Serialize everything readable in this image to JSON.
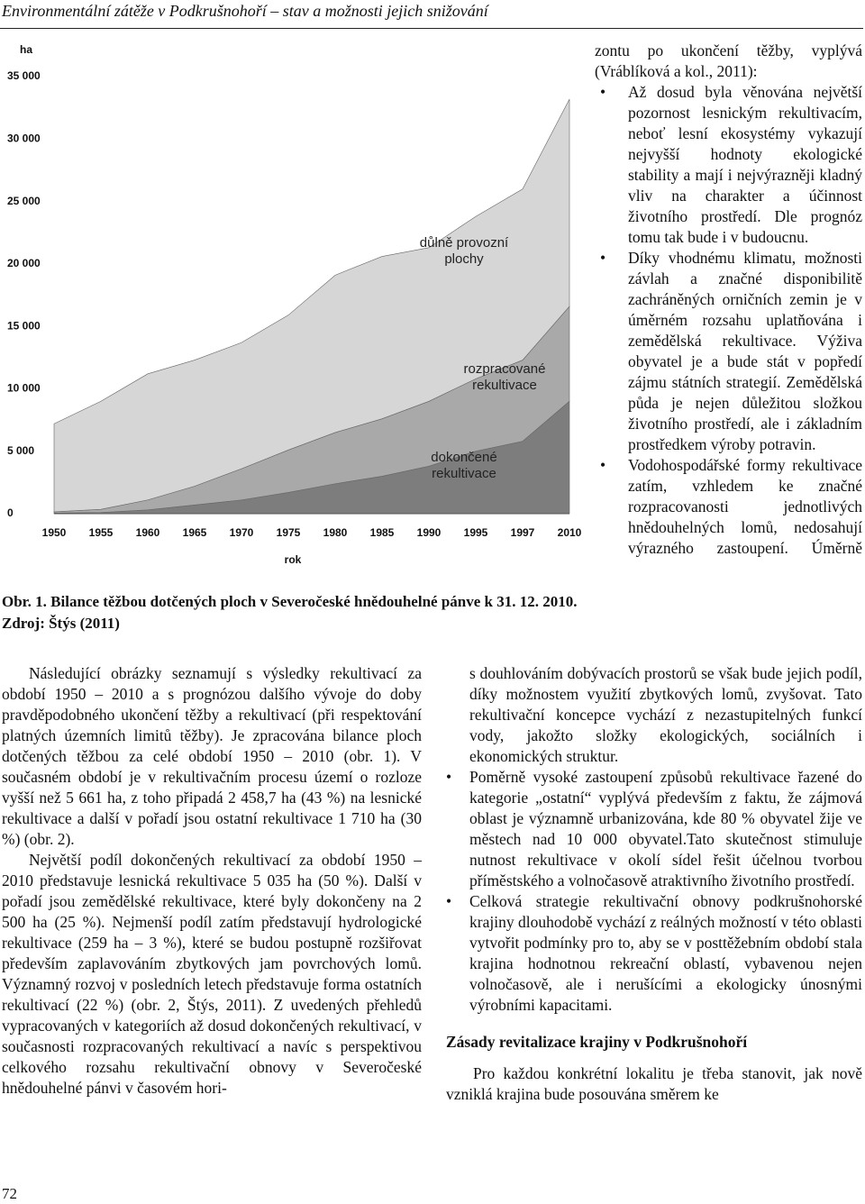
{
  "header": {
    "title": "Environmentální zátěže v Podkrušnohoří – stav a možnosti jejich snižování"
  },
  "chart_data": {
    "type": "area",
    "stacked": true,
    "ylabel": "ha",
    "xlabel": "rok",
    "categories": [
      "1950",
      "1955",
      "1960",
      "1965",
      "1970",
      "1975",
      "1980",
      "1985",
      "1990",
      "1995",
      "1997",
      "2010"
    ],
    "series": [
      {
        "name": "dokončené rekultivace",
        "color": "#7d7d7d",
        "values": [
          50,
          100,
          300,
          700,
          1100,
          1700,
          2400,
          3000,
          3800,
          5000,
          5800,
          9000
        ]
      },
      {
        "name": "rozpracované rekultivace",
        "color": "#a9a9a9",
        "values": [
          100,
          250,
          800,
          1500,
          2500,
          3400,
          4100,
          4600,
          5200,
          5800,
          6500,
          7600
        ]
      },
      {
        "name": "důlně provozní plochy",
        "color": "#d6d6d6",
        "values": [
          7050,
          8650,
          10100,
          10100,
          10100,
          10800,
          12600,
          13000,
          12300,
          13000,
          13700,
          16600
        ]
      }
    ],
    "ylim": [
      0,
      37000
    ],
    "yticks": [
      {
        "value": 0,
        "label": "0"
      },
      {
        "value": 5000,
        "label": "5 000"
      },
      {
        "value": 10000,
        "label": "10 000"
      },
      {
        "value": 15000,
        "label": "15 000"
      },
      {
        "value": 20000,
        "label": "20 000"
      },
      {
        "value": 25000,
        "label": "25 000"
      },
      {
        "value": 30000,
        "label": "30 000"
      },
      {
        "value": 35000,
        "label": "35 000"
      }
    ],
    "grid": false
  },
  "caption": "Obr. 1. Bilance těžbou dotčených ploch v Severočeské hnědouhelné pánve k 31. 12. 2010. Zdroj: Štýs (2011)",
  "left_column": {
    "paragraphs": [
      "Následující obrázky seznamují s výsledky rekultivací za období 1950 – 2010 a s prognózou dalšího vývoje do doby pravděpodobného ukončení těžby a rekultivací (při respektování platných územních limitů těžby). Je zpracována bilance ploch dotčených těžbou za celé období 1950 – 2010 (obr. 1). V současném období je v rekultivačním procesu území o rozloze vyšší než 5 661 ha, z toho připadá 2 458,7 ha (43 %) na lesnické rekultivace a další v pořadí jsou ostatní rekultivace 1 710 ha (30 %) (obr. 2).",
      "Největší podíl dokončených rekultivací za období 1950 – 2010 představuje lesnická rekultivace 5 035 ha (50 %). Další v pořadí jsou zemědělské rekultivace, které byly dokončeny na 2 500 ha (25 %). Nejmenší podíl zatím představují hydrologické rekultivace (259 ha – 3 %), které se budou postupně rozšiřovat především zaplavováním zbytkových jam povrchových lomů. Významný rozvoj v posledních letech představuje forma ostatních rekultivací (22 %) (obr. 2, Štýs, 2011). Z uvedených přehledů vypracovaných v kategoriích až dosud dokončených rekultivací, v současnosti rozpracovaných rekultivací a navíc s perspektivou celkového rozsahu rekultivační obnovy v Severočeské hnědouhelné pánvi v časovém hori-"
    ]
  },
  "right_column_top": {
    "lead": "zontu po ukončení těžby, vyplývá (Vráblíková a kol., 2011):",
    "bullets": [
      "Až dosud byla věnována největší pozornost lesnickým rekultivacím, neboť lesní ekosystémy vykazují nejvyšší hodnoty ekologické stability a mají i nejvýrazněji kladný vliv na charakter a účinnost životního prostředí. Dle prognóz tomu tak bude i v budoucnu.",
      "Díky vhodnému klimatu, možnosti závlah a značné disponibilitě zachráněných orničních zemin je v úměrném rozsahu uplatňována i zemědělská rekultivace. Výživa obyvatel je a bude stát v popředí zájmu státních strategií. Zemědělská půda je nejen důležitou složkou životního prostředí, ale i základním prostředkem výroby potravin.",
      "Vodohospodářské formy rekultivace zatím, vzhledem ke značné rozpracovanosti jednotlivých hnědouhelných lomů, nedosahují výrazného zastoupení. Úměrně"
    ]
  },
  "right_column_bottom": {
    "continuation": "s douhlováním dobývacích prostorů se však bude jejich podíl, díky možnostem využití zbytkových lomů, zvyšovat. Tato rekultivační koncepce vychází z nezastupitelných funkcí vody, jakožto složky ekologických, sociálních i ekonomických struktur.",
    "bullets": [
      "Poměrně vysoké zastoupení způsobů rekultivace řazené do kategorie „ostatní“ vyplývá především z faktu, že zájmová oblast je významně urbanizována, kde 80 % obyvatel žije ve městech nad 10 000 obyvatel.Tato skutečnost stimuluje nutnost rekultivace v okolí sídel řešit účelnou tvorbou příměstského a volnočasově atraktivního životního prostředí.",
      "Celková strategie rekultivační obnovy podkrušnohorské krajiny dlouhodobě vychází z reálných možností v této oblasti vytvořit podmínky pro to, aby se v posttěžebním období stala krajina hodnotnou rekreační oblastí, vybavenou nejen volnočasově, ale i nerušícími a ekologicky únosnými výrobními kapacitami."
    ],
    "heading": "Zásady revitalizace krajiny v Podkrušnohoří",
    "paragraph": "Pro každou konkrétní lokalitu je třeba stanovit, jak nově vzniklá krajina bude posouvána směrem ke"
  },
  "page_number": "72"
}
